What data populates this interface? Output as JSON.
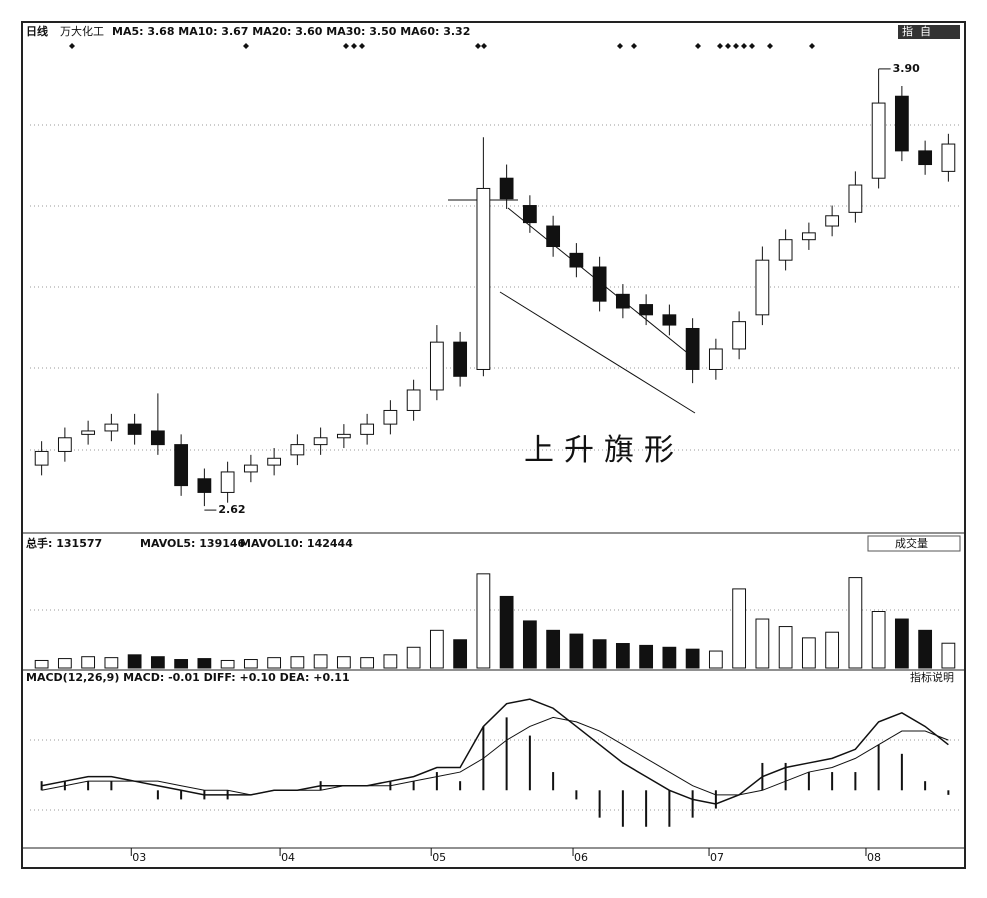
{
  "chart_data": {
    "type": "candlestick",
    "header": {
      "period": "日线",
      "name": "万大化工",
      "ma_text": "MA5: 3.68 MA10: 3.67 MA20: 3.60 MA30: 3.50 MA60: 3.32",
      "buttons": [
        "指",
        "自"
      ]
    },
    "annotations": {
      "high": "3.90",
      "low": "2.62",
      "pattern": "上升旗形"
    },
    "months": [
      "03",
      "04",
      "05",
      "06",
      "07",
      "08"
    ],
    "ylim": [
      2.55,
      3.97
    ],
    "open": [
      2.74,
      2.78,
      2.83,
      2.84,
      2.86,
      2.84,
      2.8,
      2.7,
      2.66,
      2.72,
      2.74,
      2.77,
      2.8,
      2.82,
      2.83,
      2.86,
      2.9,
      2.96,
      3.1,
      3.02,
      3.58,
      3.5,
      3.44,
      3.36,
      3.32,
      3.24,
      3.21,
      3.18,
      3.14,
      3.02,
      3.08,
      3.18,
      3.34,
      3.4,
      3.44,
      3.48,
      3.58,
      3.82,
      3.66,
      3.6
    ],
    "high": [
      2.81,
      2.85,
      2.87,
      2.89,
      2.89,
      2.95,
      2.83,
      2.73,
      2.75,
      2.77,
      2.79,
      2.83,
      2.85,
      2.86,
      2.89,
      2.93,
      2.99,
      3.15,
      3.13,
      3.7,
      3.62,
      3.53,
      3.47,
      3.39,
      3.35,
      3.27,
      3.24,
      3.21,
      3.17,
      3.11,
      3.19,
      3.38,
      3.43,
      3.45,
      3.5,
      3.6,
      3.9,
      3.85,
      3.69,
      3.71
    ],
    "low": [
      2.71,
      2.75,
      2.8,
      2.81,
      2.8,
      2.77,
      2.65,
      2.62,
      2.63,
      2.69,
      2.71,
      2.74,
      2.77,
      2.79,
      2.8,
      2.83,
      2.87,
      2.93,
      2.97,
      3.0,
      3.49,
      3.42,
      3.35,
      3.29,
      3.19,
      3.17,
      3.15,
      3.12,
      2.98,
      2.99,
      3.05,
      3.15,
      3.31,
      3.37,
      3.41,
      3.45,
      3.55,
      3.63,
      3.59,
      3.57
    ],
    "close": [
      2.78,
      2.82,
      2.84,
      2.86,
      2.83,
      2.8,
      2.68,
      2.66,
      2.72,
      2.74,
      2.76,
      2.8,
      2.82,
      2.83,
      2.86,
      2.9,
      2.96,
      3.1,
      3.0,
      3.55,
      3.52,
      3.45,
      3.38,
      3.32,
      3.22,
      3.2,
      3.18,
      3.15,
      3.02,
      3.08,
      3.16,
      3.34,
      3.4,
      3.42,
      3.47,
      3.56,
      3.8,
      3.66,
      3.62,
      3.68
    ],
    "volume": {
      "header": [
        "总手: 131577",
        "MAVOL5: 139146",
        "MAVOL10: 142444"
      ],
      "selector": "成交量",
      "ylim": [
        0,
        600000
      ],
      "values": [
        40000,
        50000,
        60000,
        55000,
        70000,
        60000,
        45000,
        50000,
        40000,
        45000,
        55000,
        60000,
        70000,
        60000,
        55000,
        70000,
        110000,
        200000,
        150000,
        500000,
        380000,
        250000,
        200000,
        180000,
        150000,
        130000,
        120000,
        110000,
        100000,
        90000,
        420000,
        260000,
        220000,
        160000,
        190000,
        480000,
        300000,
        260000,
        200000,
        131577
      ]
    },
    "macd": {
      "header": "MACD(12,26,9) MACD: -0.01 DIFF: +0.10 DEA: +0.11",
      "help": "指标说明",
      "ylim": [
        -0.12,
        0.22
      ],
      "bars": [
        0.02,
        0.02,
        0.02,
        0.02,
        0,
        -0.02,
        -0.02,
        -0.02,
        -0.02,
        0,
        0,
        0,
        0.02,
        0,
        0,
        0.02,
        0.02,
        0.04,
        0.02,
        0.14,
        0.16,
        0.12,
        0.04,
        -0.02,
        -0.06,
        -0.08,
        -0.08,
        -0.08,
        -0.06,
        -0.04,
        0,
        0.06,
        0.06,
        0.04,
        0.04,
        0.04,
        0.1,
        0.08,
        0.02,
        -0.01
      ],
      "diff": [
        0.01,
        0.02,
        0.03,
        0.03,
        0.02,
        0.01,
        0,
        -0.01,
        -0.01,
        -0.01,
        0,
        0,
        0.01,
        0.01,
        0.01,
        0.02,
        0.03,
        0.05,
        0.05,
        0.14,
        0.19,
        0.2,
        0.18,
        0.14,
        0.1,
        0.06,
        0.03,
        0,
        -0.02,
        -0.03,
        -0.01,
        0.03,
        0.05,
        0.06,
        0.07,
        0.09,
        0.15,
        0.17,
        0.14,
        0.1
      ],
      "dea": [
        0,
        0.01,
        0.02,
        0.02,
        0.02,
        0.02,
        0.01,
        0,
        0,
        -0.01,
        0,
        0,
        0,
        0.01,
        0.01,
        0.01,
        0.02,
        0.03,
        0.04,
        0.07,
        0.11,
        0.14,
        0.16,
        0.15,
        0.13,
        0.1,
        0.07,
        0.04,
        0.01,
        -0.01,
        -0.01,
        0,
        0.02,
        0.04,
        0.05,
        0.07,
        0.1,
        0.13,
        0.13,
        0.11
      ]
    }
  }
}
